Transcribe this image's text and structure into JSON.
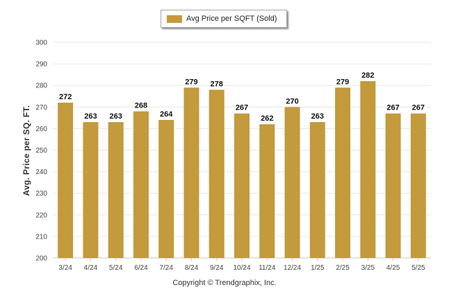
{
  "legend": {
    "label": "Avg Price per SQFT (Sold)"
  },
  "footer": {
    "copyright": "Copyright © Trendgraphix, Inc."
  },
  "colors": {
    "bar": "#C39A3C",
    "grid": "#e6e6e6",
    "axis": "#c8c8c8"
  },
  "chart_data": {
    "type": "bar",
    "categories": [
      "3/24",
      "4/24",
      "5/24",
      "6/24",
      "7/24",
      "8/24",
      "9/24",
      "10/24",
      "11/24",
      "12/24",
      "1/25",
      "2/25",
      "3/25",
      "4/25",
      "5/25"
    ],
    "series": [
      {
        "name": "Avg Price per SQFT (Sold)",
        "values": [
          272,
          263,
          263,
          268,
          264,
          279,
          278,
          267,
          262,
          270,
          263,
          279,
          282,
          267,
          267
        ]
      }
    ],
    "data_labels": [
      "272",
      "263",
      "263",
      "268",
      "264",
      "279",
      "278",
      "267",
      "262",
      "270",
      "263",
      "279",
      "282",
      "267",
      "267"
    ],
    "ylabel": "Avg. Price per SQ. FT.",
    "xlabel": "",
    "ylim": [
      200,
      300
    ],
    "yticks": [
      200,
      210,
      220,
      230,
      240,
      250,
      260,
      270,
      280,
      290,
      300
    ],
    "grid": true,
    "legend_position": "top-center"
  }
}
